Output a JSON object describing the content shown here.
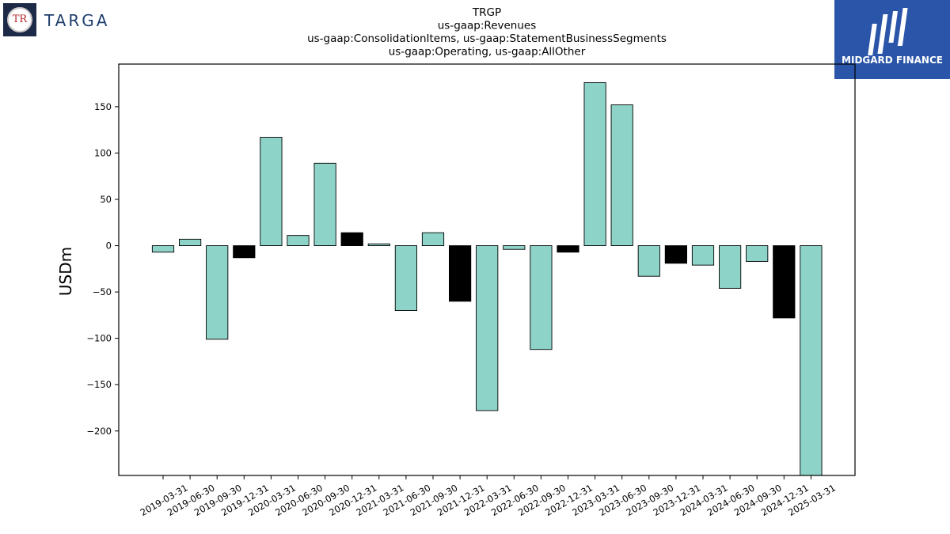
{
  "logos": {
    "left_text": "TARGA",
    "left_mark": "TR",
    "right_text": "MIDGARD FINANCE",
    "right_icon": "midgard-finance-logo-icon"
  },
  "chart_data": {
    "type": "bar",
    "title_lines": [
      "TRGP",
      "us-gaap:Revenues",
      "us-gaap:ConsolidationItems, us-gaap:StatementBusinessSegments",
      "us-gaap:Operating, us-gaap:AllOther"
    ],
    "xlabel": "",
    "ylabel": "USDm",
    "ylim": [
      -248,
      196
    ],
    "yticks": [
      150,
      100,
      50,
      0,
      -50,
      -100,
      -150,
      -200
    ],
    "ytick_labels": [
      "150",
      "100",
      "50",
      "0",
      "−50",
      "−100",
      "−150",
      "−200"
    ],
    "grid": false,
    "colors": {
      "default": "#8dd3c7",
      "q4": "#000000",
      "edge": "#000000"
    },
    "categories": [
      "2019-03-31",
      "2019-06-30",
      "2019-09-30",
      "2019-12-31",
      "2020-03-31",
      "2020-06-30",
      "2020-09-30",
      "2020-12-31",
      "2021-03-31",
      "2021-06-30",
      "2021-09-30",
      "2021-12-31",
      "2022-03-31",
      "2022-06-30",
      "2022-09-30",
      "2022-12-31",
      "2023-03-31",
      "2023-06-30",
      "2023-09-30",
      "2023-12-31",
      "2024-03-31",
      "2024-06-30",
      "2024-09-30",
      "2024-12-31",
      "2025-03-31"
    ],
    "values": [
      -7,
      7,
      -101,
      -13,
      117,
      11,
      89,
      14,
      2,
      -70,
      14,
      -60,
      -178,
      -4,
      -112,
      -7,
      176,
      152,
      -33,
      -19,
      -21,
      -46,
      -17,
      -78,
      -248
    ],
    "highlight": [
      false,
      false,
      false,
      true,
      false,
      false,
      false,
      true,
      false,
      false,
      false,
      true,
      false,
      false,
      false,
      true,
      false,
      false,
      false,
      true,
      false,
      false,
      false,
      true,
      false
    ]
  }
}
